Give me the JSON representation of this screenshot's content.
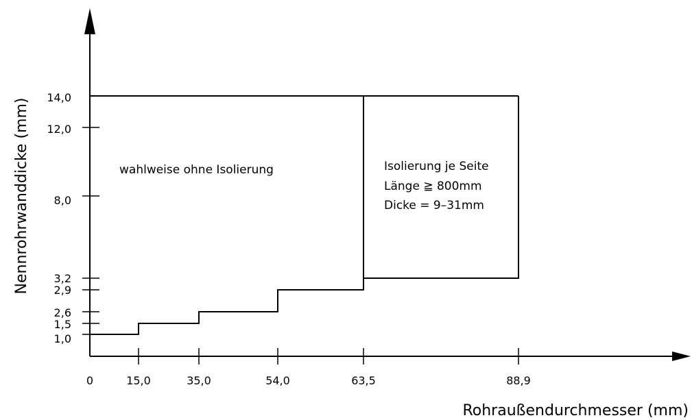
{
  "diagram": {
    "y_axis_title": "Nennrohrwanddicke (mm)",
    "x_axis_title": "Rohraußendurchmesser (mm)",
    "region_left_label": "wahlweise ohne Isolierung",
    "region_right_lines": [
      "Isolierung je Seite",
      "Länge ≧ 800mm",
      "Dicke = 9–31mm"
    ]
  },
  "chart_data": {
    "type": "line",
    "x_ticks": [
      "0",
      "15,0",
      "35,0",
      "54,0",
      "63,5",
      "88,9"
    ],
    "y_ticks": [
      "1,0",
      "1,5",
      "2,6",
      "2,9",
      "3,2",
      "8,0",
      "12,0",
      "14,0"
    ],
    "series": [
      {
        "points": [
          [
            0,
            1.0
          ],
          [
            15.0,
            1.0
          ],
          [
            15.0,
            1.5
          ],
          [
            35.0,
            1.5
          ],
          [
            35.0,
            2.6
          ],
          [
            54.0,
            2.6
          ],
          [
            54.0,
            2.9
          ],
          [
            63.5,
            2.9
          ],
          [
            63.5,
            14.0
          ]
        ]
      },
      {
        "points": [
          [
            63.5,
            3.2
          ],
          [
            88.9,
            3.2
          ],
          [
            88.9,
            14.0
          ]
        ]
      }
    ],
    "upper_boundary": 14.0,
    "xlim": [
      0,
      88.9
    ],
    "ylim": [
      1.0,
      14.0
    ]
  }
}
